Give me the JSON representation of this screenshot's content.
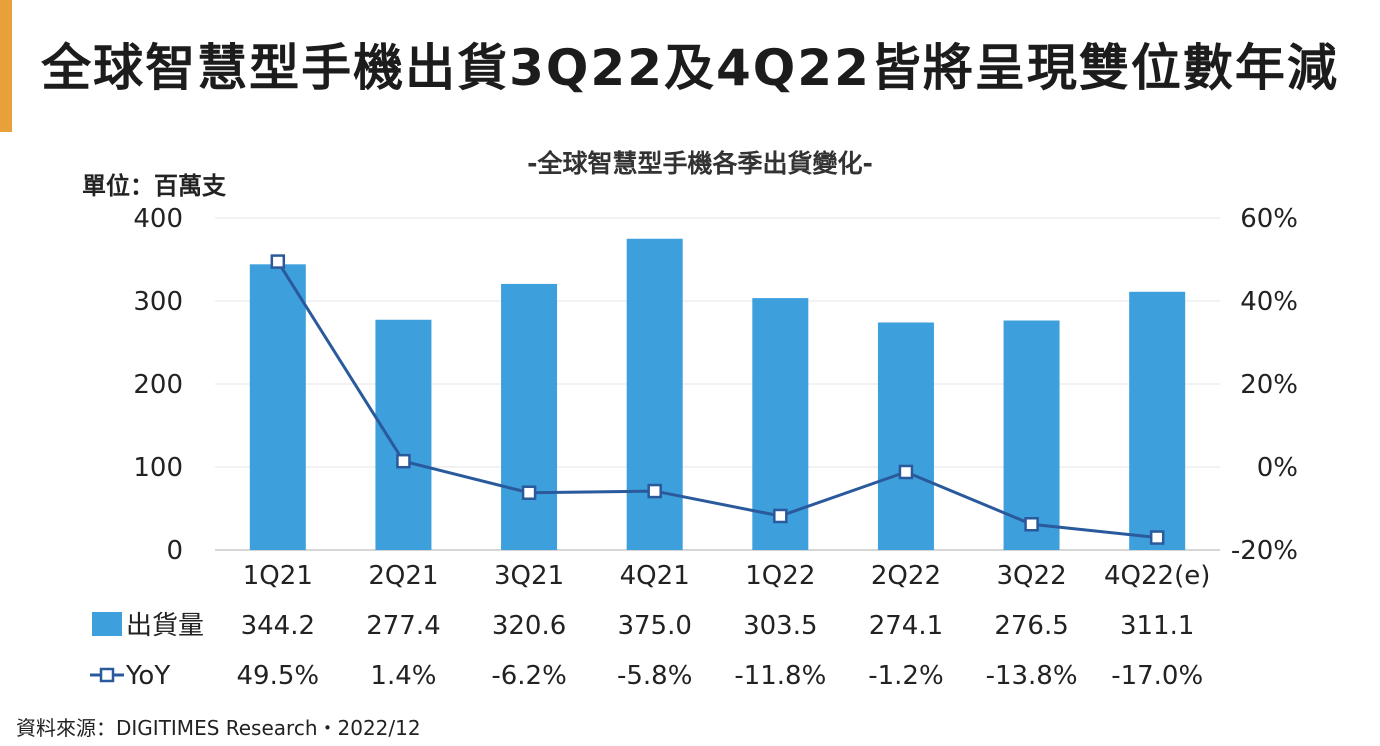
{
  "header": {
    "title": "全球智慧型手機出貨3Q22及4Q22皆將呈現雙位數年減",
    "unit_label": "單位：百萬支"
  },
  "footer": {
    "source_label": "資料來源：",
    "source_value": "DIGITIMES Research",
    "separator": "・",
    "date": "2022/12"
  },
  "colors": {
    "bar": "#3d9fdc",
    "line": "#2a5a9c",
    "accent": "#e8a13a"
  },
  "chart_data": {
    "type": "bar",
    "title": "-全球智慧型手機各季出貨變化-",
    "categories": [
      "1Q21",
      "2Q21",
      "3Q21",
      "4Q21",
      "1Q22",
      "2Q22",
      "3Q22",
      "4Q22(e)"
    ],
    "series": [
      {
        "name": "出貨量",
        "type": "bar",
        "axis": "left",
        "values": [
          344.2,
          277.4,
          320.6,
          375.0,
          303.5,
          274.1,
          276.5,
          311.1
        ],
        "labels": [
          "344.2",
          "277.4",
          "320.6",
          "375.0",
          "303.5",
          "274.1",
          "276.5",
          "311.1"
        ]
      },
      {
        "name": "YoY",
        "type": "line",
        "axis": "right",
        "values": [
          49.5,
          1.4,
          -6.2,
          -5.8,
          -11.8,
          -1.2,
          -13.8,
          -17.0
        ],
        "labels": [
          "49.5%",
          "1.4%",
          "-6.2%",
          "-5.8%",
          "-11.8%",
          "-1.2%",
          "-13.8%",
          "-17.0%"
        ]
      }
    ],
    "left_axis": {
      "min": 0,
      "max": 400,
      "ticks": [
        0,
        100,
        200,
        300,
        400
      ],
      "tick_labels": [
        "0",
        "100",
        "200",
        "300",
        "400"
      ]
    },
    "right_axis": {
      "min": -20,
      "max": 60,
      "ticks": [
        -20,
        0,
        20,
        40,
        60
      ],
      "tick_labels": [
        "-20%",
        "0%",
        "20%",
        "40%",
        "60%"
      ]
    },
    "grid": true,
    "legend_placement": "table-below"
  }
}
